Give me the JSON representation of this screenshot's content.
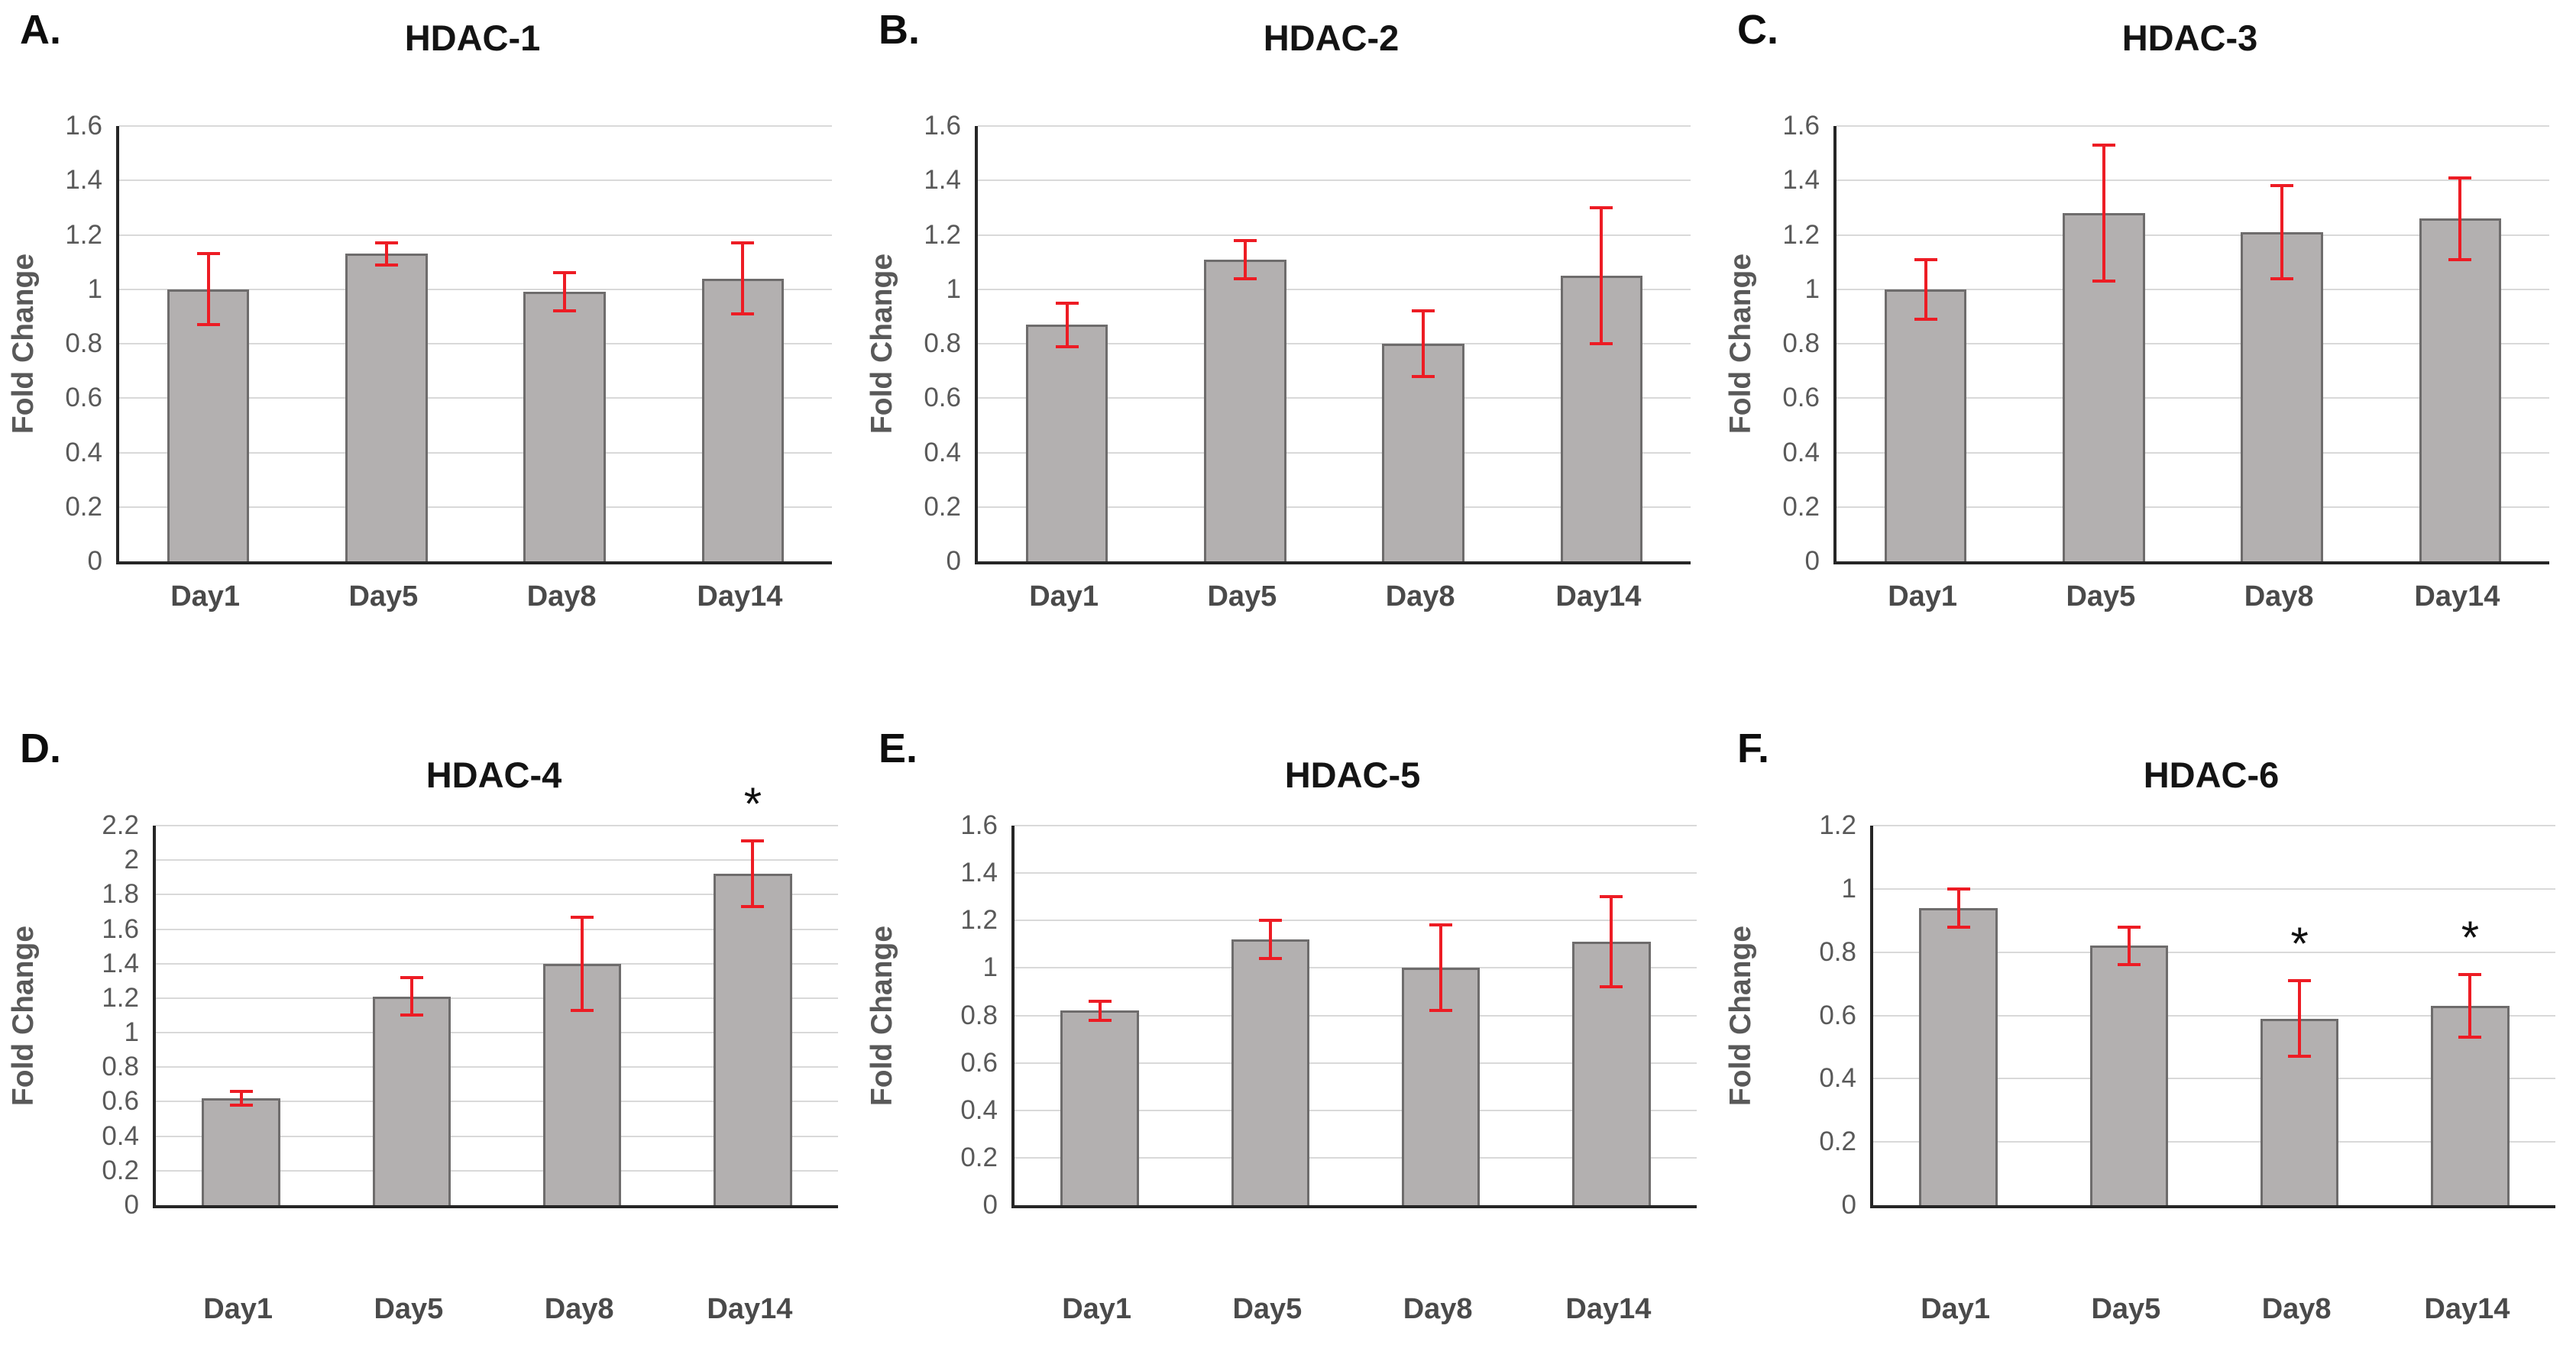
{
  "page": {
    "background": "#ffffff",
    "description": "Figure with six bar charts of HDAC gene expression fold change over time"
  },
  "colors": {
    "bar_fill": "#b3b0b0",
    "bar_border": "#6e6c6c",
    "error_bar": "#ed1c24",
    "gridline": "#d9d9d9",
    "axis": "#262626",
    "tick_text": "#595959",
    "xlabel_text": "#4a4a4a",
    "title_text": "#141414",
    "ylabel_text": "#595959",
    "significance_text": "#111111"
  },
  "chart_data": [
    {
      "type": "bar",
      "panel_label": "A.",
      "title": "HDAC-1",
      "categories": [
        "Day1",
        "Day5",
        "Day8",
        "Day14"
      ],
      "values": [
        1.0,
        1.13,
        0.99,
        1.04
      ],
      "errors": [
        0.13,
        0.04,
        0.07,
        0.13
      ],
      "significance": [
        "",
        "",
        "",
        ""
      ],
      "xlabel": "",
      "ylabel": "Fold Change",
      "ylim": [
        0,
        1.6
      ],
      "ytick_step": 0.2,
      "grid": true,
      "legend": "none"
    },
    {
      "type": "bar",
      "panel_label": "B.",
      "title": "HDAC-2",
      "categories": [
        "Day1",
        "Day5",
        "Day8",
        "Day14"
      ],
      "values": [
        0.87,
        1.11,
        0.8,
        1.05
      ],
      "errors": [
        0.08,
        0.07,
        0.12,
        0.25
      ],
      "significance": [
        "",
        "",
        "",
        ""
      ],
      "xlabel": "",
      "ylabel": "Fold Change",
      "ylim": [
        0,
        1.6
      ],
      "ytick_step": 0.2,
      "grid": true,
      "legend": "none"
    },
    {
      "type": "bar",
      "panel_label": "C.",
      "title": "HDAC-3",
      "categories": [
        "Day1",
        "Day5",
        "Day8",
        "Day14"
      ],
      "values": [
        1.0,
        1.28,
        1.21,
        1.26
      ],
      "errors": [
        0.11,
        0.25,
        0.17,
        0.15
      ],
      "significance": [
        "",
        "",
        "",
        ""
      ],
      "xlabel": "",
      "ylabel": "Fold Change",
      "ylim": [
        0,
        1.6
      ],
      "ytick_step": 0.2,
      "grid": true,
      "legend": "none"
    },
    {
      "type": "bar",
      "panel_label": "D.",
      "title": "HDAC-4",
      "categories": [
        "Day1",
        "Day5",
        "Day8",
        "Day14"
      ],
      "values": [
        0.62,
        1.21,
        1.4,
        1.92
      ],
      "errors": [
        0.04,
        0.11,
        0.27,
        0.19
      ],
      "significance": [
        "",
        "",
        "",
        "*"
      ],
      "xlabel": "",
      "ylabel": "Fold Change",
      "ylim": [
        0,
        2.2
      ],
      "ytick_step": 0.2,
      "grid": true,
      "legend": "none"
    },
    {
      "type": "bar",
      "panel_label": "E.",
      "title": "HDAC-5",
      "categories": [
        "Day1",
        "Day5",
        "Day8",
        "Day14"
      ],
      "values": [
        0.82,
        1.12,
        1.0,
        1.11
      ],
      "errors": [
        0.04,
        0.08,
        0.18,
        0.19
      ],
      "significance": [
        "",
        "",
        "",
        ""
      ],
      "xlabel": "",
      "ylabel": "Fold Change",
      "ylim": [
        0,
        1.6
      ],
      "ytick_step": 0.2,
      "grid": true,
      "legend": "none"
    },
    {
      "type": "bar",
      "panel_label": "F.",
      "title": "HDAC-6",
      "categories": [
        "Day1",
        "Day5",
        "Day8",
        "Day14"
      ],
      "values": [
        0.94,
        0.82,
        0.59,
        0.63
      ],
      "errors": [
        0.06,
        0.06,
        0.12,
        0.1
      ],
      "significance": [
        "",
        "",
        "*",
        "*"
      ],
      "xlabel": "",
      "ylabel": "Fold Change",
      "ylim": [
        0,
        1.2
      ],
      "ytick_step": 0.2,
      "grid": true,
      "legend": "none"
    }
  ]
}
